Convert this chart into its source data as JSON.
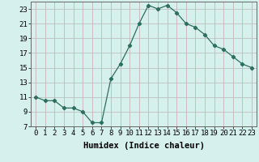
{
  "x": [
    0,
    1,
    2,
    3,
    4,
    5,
    6,
    7,
    8,
    9,
    10,
    11,
    12,
    13,
    14,
    15,
    16,
    17,
    18,
    19,
    20,
    21,
    22,
    23
  ],
  "y": [
    11,
    10.5,
    10.5,
    9.5,
    9.5,
    9,
    7.5,
    7.5,
    13.5,
    15.5,
    18,
    21,
    23.5,
    23,
    23.5,
    22.5,
    21,
    20.5,
    19.5,
    18,
    17.5,
    16.5,
    15.5,
    15
  ],
  "line_color": "#2d6e5e",
  "marker": "D",
  "marker_size": 2.2,
  "bg_color": "#d6f0ee",
  "x_grid_color": "#c8a8a8",
  "y_grid_color": "#b8b8b8",
  "xlabel": "Humidex (Indice chaleur)",
  "xlim": [
    -0.5,
    23.5
  ],
  "ylim": [
    7,
    24
  ],
  "yticks": [
    7,
    9,
    11,
    13,
    15,
    17,
    19,
    21,
    23
  ],
  "xticks": [
    0,
    1,
    2,
    3,
    4,
    5,
    6,
    7,
    8,
    9,
    10,
    11,
    12,
    13,
    14,
    15,
    16,
    17,
    18,
    19,
    20,
    21,
    22,
    23
  ],
  "tick_font_size": 6.5,
  "label_font_size": 7.5
}
